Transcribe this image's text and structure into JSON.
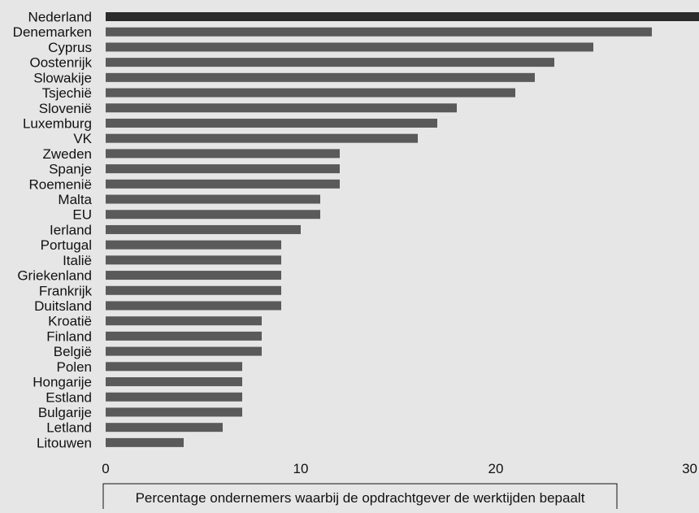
{
  "chart_data": {
    "type": "bar",
    "orientation": "horizontal",
    "categories": [
      "Nederland",
      "Denemarken",
      "Cyprus",
      "Oostenrijk",
      "Slowakije",
      "Tsjechië",
      "Slovenië",
      "Luxemburg",
      "VK",
      "Zweden",
      "Spanje",
      "Roemenië",
      "Malta",
      "EU",
      "Ierland",
      "Portugal",
      "Italië",
      "Griekenland",
      "Frankrijk",
      "Duitsland",
      "Kroatië",
      "Finland",
      "België",
      "Polen",
      "Hongarije",
      "Estland",
      "Bulgarije",
      "Letland",
      "Litouwen"
    ],
    "values": [
      31,
      28,
      25,
      23,
      22,
      21,
      18,
      17,
      16,
      12,
      12,
      12,
      11,
      11,
      10,
      9,
      9,
      9,
      9,
      9,
      8,
      8,
      8,
      7,
      7,
      7,
      7,
      6,
      4
    ],
    "highlight": "Nederland",
    "colors": {
      "bar": "#5a5a5a",
      "highlight": "#2b2b2b",
      "background": "#e6e6e6",
      "text": "#111111"
    },
    "xlim": [
      0,
      30
    ],
    "xticks": [
      0,
      10,
      20,
      30
    ],
    "xlabel": "Percentage ondernemers waarbij de opdrachtgever de werktijden bepaalt",
    "title": "",
    "ylabel": "",
    "grid": false,
    "legend": "none"
  }
}
